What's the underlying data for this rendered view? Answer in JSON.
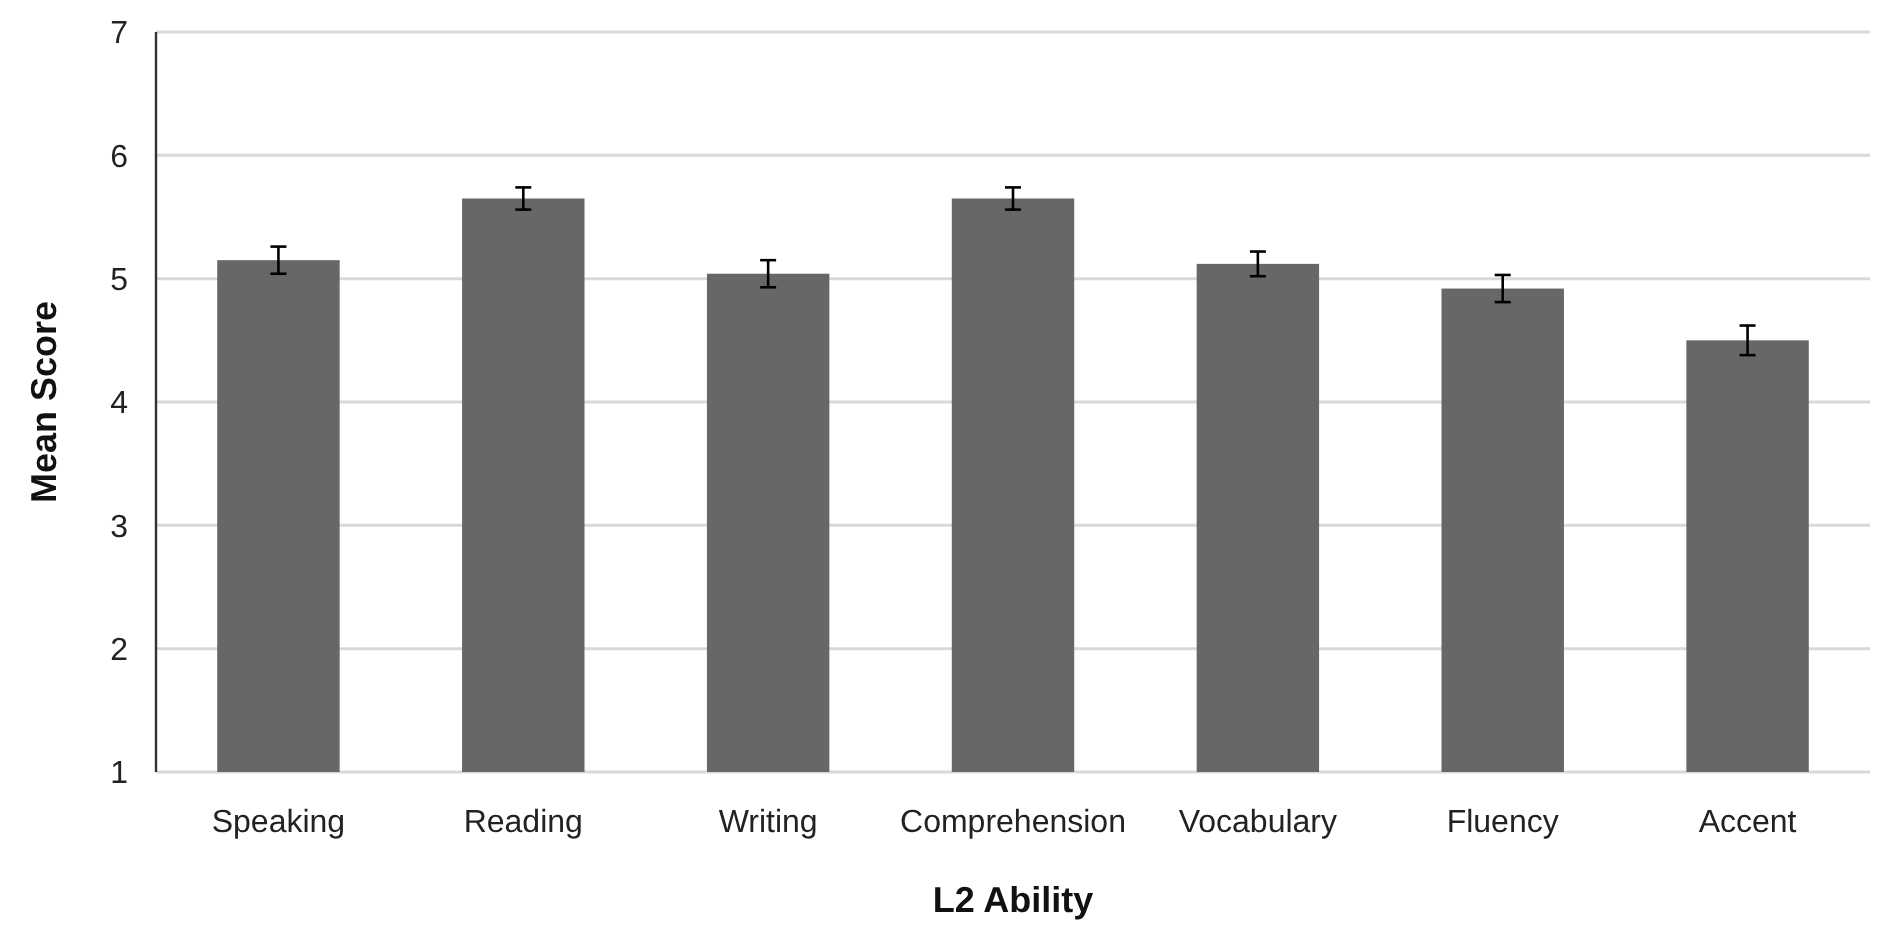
{
  "chart_data": {
    "type": "bar",
    "xlabel": "L2 Ability",
    "ylabel": "Mean Score",
    "categories": [
      "Speaking",
      "Reading",
      "Writing",
      "Comprehension",
      "Vocabulary",
      "Fluency",
      "Accent"
    ],
    "values": [
      5.15,
      5.65,
      5.04,
      5.65,
      5.12,
      4.92,
      4.5
    ],
    "errors": [
      0.11,
      0.09,
      0.11,
      0.09,
      0.1,
      0.11,
      0.12
    ],
    "color": "#676767",
    "ylim": [
      1,
      7
    ],
    "yticks": [
      1,
      2,
      3,
      4,
      5,
      6,
      7
    ],
    "grid": "y"
  }
}
